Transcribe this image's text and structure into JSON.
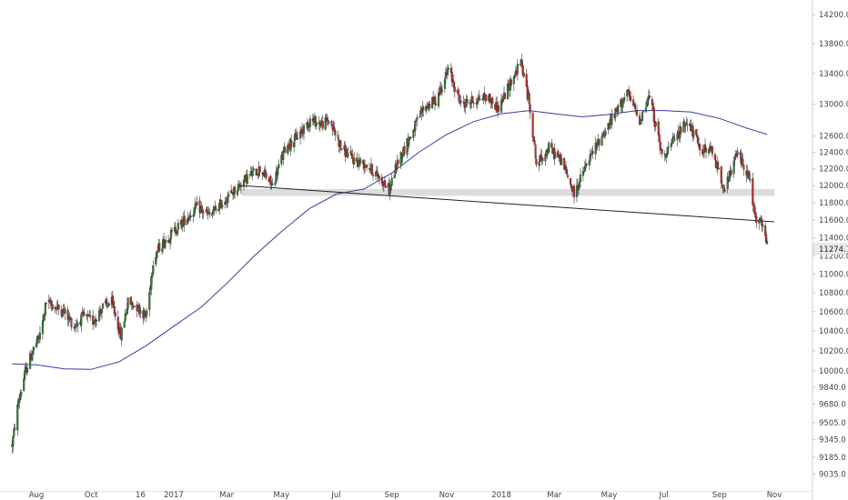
{
  "chart_data": {
    "type": "candlestick",
    "title": "",
    "xlabel": "",
    "ylabel": "",
    "y_scale": "log",
    "ylim": [
      8940,
      14600
    ],
    "grid": false,
    "x_ticks": [
      {
        "label": "Aug",
        "date": "2016-08-01"
      },
      {
        "label": "Oct",
        "date": "2016-10-01"
      },
      {
        "label": "16",
        "date": "2016-11-25"
      },
      {
        "label": "2017",
        "date": "2017-01-01"
      },
      {
        "label": "Mar",
        "date": "2017-03-01"
      },
      {
        "label": "May",
        "date": "2017-05-01"
      },
      {
        "label": "Jul",
        "date": "2017-07-01"
      },
      {
        "label": "Sep",
        "date": "2017-09-01"
      },
      {
        "label": "Nov",
        "date": "2017-11-01"
      },
      {
        "label": "2018",
        "date": "2018-01-01"
      },
      {
        "label": "Mar",
        "date": "2018-03-01"
      },
      {
        "label": "May",
        "date": "2018-05-01"
      },
      {
        "label": "Jul",
        "date": "2018-07-01"
      },
      {
        "label": "Sep",
        "date": "2018-09-01"
      },
      {
        "label": "Nov",
        "date": "2018-11-01"
      }
    ],
    "y_ticks": [
      "9035.0",
      "9185.0",
      "9345.0",
      "9505.0",
      "9680.0",
      "9840.0",
      "10000.0",
      "10200.0",
      "10400.0",
      "10600.0",
      "10800.0",
      "11000.0",
      "11200.0",
      "11400.0",
      "11600.0",
      "11800.0",
      "12000.0",
      "12200.0",
      "12400.0",
      "12600.0",
      "13000.0",
      "13400.0",
      "13800.0",
      "14200.0"
    ],
    "last_price": {
      "value": "11274.7",
      "color": "#ffffff",
      "bg": "#e9e9e9"
    },
    "colors": {
      "up": "#2e7d32",
      "down": "#c62828",
      "ma": "#3b3b9a",
      "trendline": "#222222",
      "zone": "#d0d0d0"
    },
    "series": [
      {
        "kind": "price-anchors",
        "points": [
          [
            "2016-07-05",
            9300
          ],
          [
            "2016-07-12",
            9700
          ],
          [
            "2016-07-20",
            10000
          ],
          [
            "2016-07-28",
            10200
          ],
          [
            "2016-08-05",
            10350
          ],
          [
            "2016-08-12",
            10700
          ],
          [
            "2016-08-22",
            10650
          ],
          [
            "2016-09-01",
            10600
          ],
          [
            "2016-09-12",
            10450
          ],
          [
            "2016-09-22",
            10550
          ],
          [
            "2016-10-03",
            10500
          ],
          [
            "2016-10-14",
            10650
          ],
          [
            "2016-10-24",
            10700
          ],
          [
            "2016-11-03",
            10350
          ],
          [
            "2016-11-11",
            10700
          ],
          [
            "2016-11-22",
            10650
          ],
          [
            "2016-12-01",
            10550
          ],
          [
            "2016-12-05",
            10800
          ],
          [
            "2016-12-09",
            11150
          ],
          [
            "2016-12-16",
            11300
          ],
          [
            "2016-12-30",
            11450
          ],
          [
            "2017-01-13",
            11600
          ],
          [
            "2017-01-27",
            11750
          ],
          [
            "2017-02-10",
            11650
          ],
          [
            "2017-02-24",
            11800
          ],
          [
            "2017-03-10",
            11950
          ],
          [
            "2017-03-24",
            12100
          ],
          [
            "2017-04-07",
            12200
          ],
          [
            "2017-04-21",
            12000
          ],
          [
            "2017-05-05",
            12450
          ],
          [
            "2017-05-19",
            12600
          ],
          [
            "2017-06-02",
            12800
          ],
          [
            "2017-06-16",
            12750
          ],
          [
            "2017-06-23",
            12800
          ],
          [
            "2017-07-07",
            12450
          ],
          [
            "2017-07-21",
            12300
          ],
          [
            "2017-08-04",
            12250
          ],
          [
            "2017-08-18",
            12100
          ],
          [
            "2017-08-29",
            11950
          ],
          [
            "2017-09-08",
            12300
          ],
          [
            "2017-09-22",
            12600
          ],
          [
            "2017-10-06",
            12950
          ],
          [
            "2017-10-20",
            13050
          ],
          [
            "2017-11-03",
            13450
          ],
          [
            "2017-11-17",
            13000
          ],
          [
            "2017-12-01",
            13050
          ],
          [
            "2017-12-15",
            13100
          ],
          [
            "2017-12-29",
            12950
          ],
          [
            "2018-01-12",
            13300
          ],
          [
            "2018-01-23",
            13550
          ],
          [
            "2018-02-02",
            12950
          ],
          [
            "2018-02-09",
            12250
          ],
          [
            "2018-02-23",
            12450
          ],
          [
            "2018-03-09",
            12300
          ],
          [
            "2018-03-23",
            11900
          ],
          [
            "2018-04-06",
            12250
          ],
          [
            "2018-04-20",
            12550
          ],
          [
            "2018-05-04",
            12800
          ],
          [
            "2018-05-21",
            13150
          ],
          [
            "2018-06-04",
            12800
          ],
          [
            "2018-06-15",
            13100
          ],
          [
            "2018-06-29",
            12350
          ],
          [
            "2018-07-13",
            12550
          ],
          [
            "2018-07-27",
            12800
          ],
          [
            "2018-08-10",
            12450
          ],
          [
            "2018-08-24",
            12400
          ],
          [
            "2018-09-07",
            11950
          ],
          [
            "2018-09-21",
            12400
          ],
          [
            "2018-10-04",
            12100
          ],
          [
            "2018-10-11",
            11600
          ],
          [
            "2018-10-19",
            11550
          ],
          [
            "2018-10-24",
            11300
          ]
        ]
      },
      {
        "kind": "moving-average",
        "points": [
          [
            "2016-07-05",
            10070
          ],
          [
            "2016-08-01",
            10060
          ],
          [
            "2016-09-01",
            10020
          ],
          [
            "2016-10-01",
            10015
          ],
          [
            "2016-11-01",
            10090
          ],
          [
            "2016-12-01",
            10250
          ],
          [
            "2017-01-01",
            10450
          ],
          [
            "2017-02-01",
            10650
          ],
          [
            "2017-03-01",
            10900
          ],
          [
            "2017-04-01",
            11200
          ],
          [
            "2017-05-01",
            11470
          ],
          [
            "2017-06-01",
            11730
          ],
          [
            "2017-07-01",
            11900
          ],
          [
            "2017-08-01",
            11960
          ],
          [
            "2017-09-01",
            12150
          ],
          [
            "2017-10-01",
            12400
          ],
          [
            "2017-11-01",
            12620
          ],
          [
            "2017-12-01",
            12780
          ],
          [
            "2018-01-01",
            12880
          ],
          [
            "2018-02-01",
            12920
          ],
          [
            "2018-03-01",
            12880
          ],
          [
            "2018-04-01",
            12840
          ],
          [
            "2018-05-01",
            12870
          ],
          [
            "2018-06-01",
            12920
          ],
          [
            "2018-07-01",
            12920
          ],
          [
            "2018-08-01",
            12900
          ],
          [
            "2018-09-01",
            12820
          ],
          [
            "2018-10-01",
            12700
          ],
          [
            "2018-10-24",
            12620
          ]
        ]
      }
    ],
    "trendline": [
      [
        "2017-03-17",
        12000
      ],
      [
        "2018-11-01",
        11580
      ]
    ],
    "zone": {
      "from_date": "2017-03-17",
      "to_date": "2018-11-01",
      "low": 11880,
      "high": 11960
    }
  }
}
